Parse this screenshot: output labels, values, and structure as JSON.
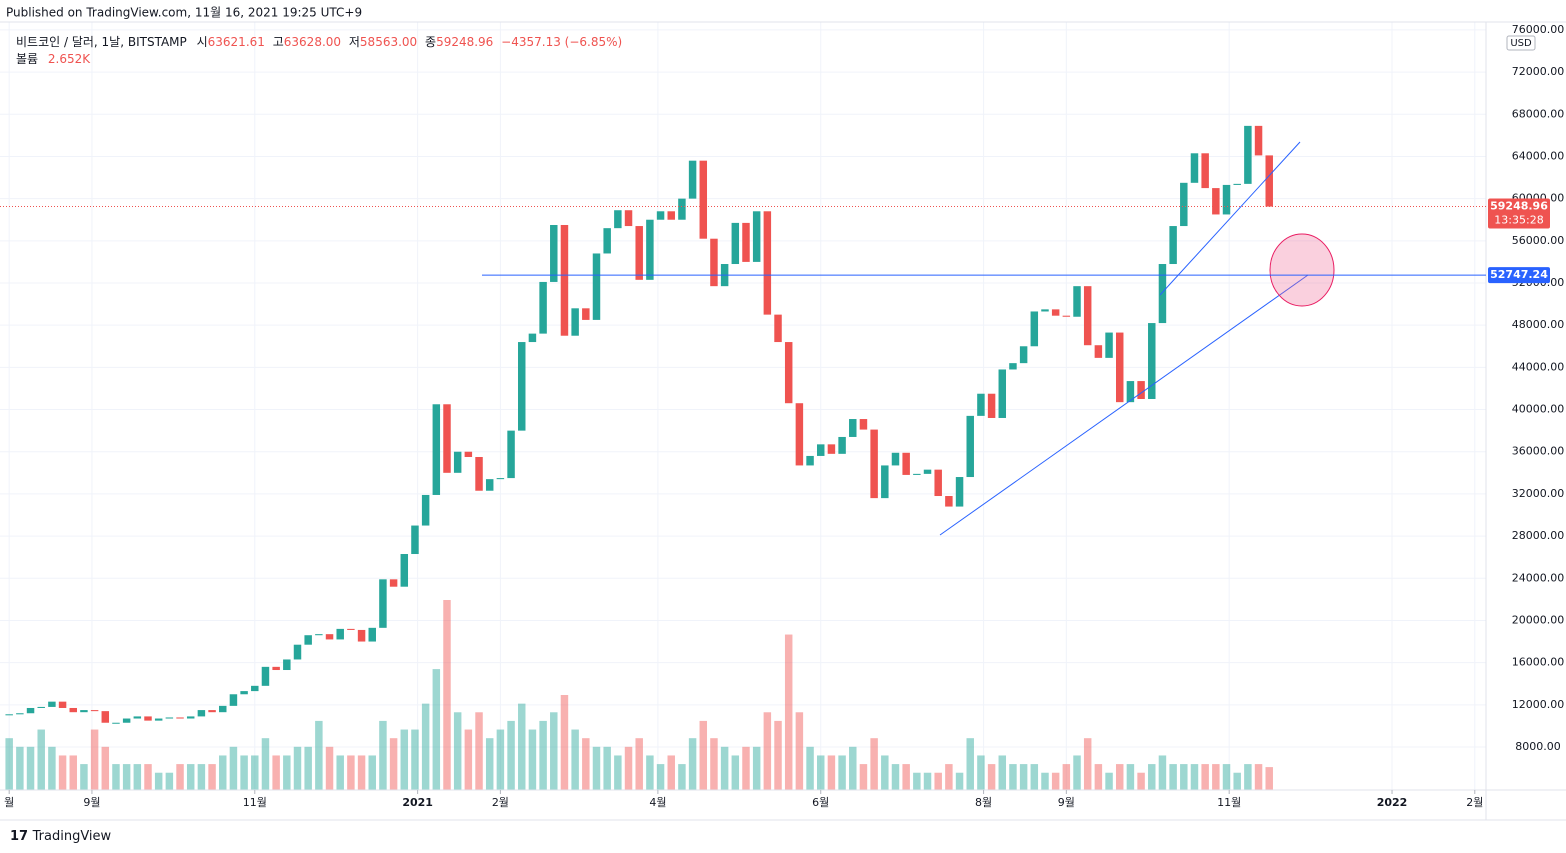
{
  "page": {
    "published": "Published on TradingView.com, 11월 16, 2021 19:25 UTC+9",
    "brand": "TradingView",
    "header": {
      "symbol": "비트코인 / 달러, 1날, BITSTAMP",
      "open_label": "시",
      "open": "63621.61",
      "high_label": "고",
      "high": "63628.00",
      "low_label": "저",
      "low": "58563.00",
      "close_label": "종",
      "close": "59248.96",
      "change": "−4357.13 (−6.85%)",
      "volume_title": "볼륨",
      "volume": "2.652K"
    },
    "currency": "USD",
    "countdown": "13:35:28"
  },
  "chart_data": {
    "type": "candlestick",
    "values": [
      11100,
      11200,
      11700,
      11800,
      12300,
      11700,
      11300,
      11500,
      11400,
      10300,
      10300,
      10700,
      10900,
      10500,
      10700,
      10800,
      10700,
      10900,
      11500,
      11300,
      11900,
      13000,
      13300,
      13800,
      15600,
      15300,
      16300,
      17700,
      18600,
      18700,
      18200,
      19200,
      19100,
      18000,
      19300,
      23900,
      23200,
      26300,
      29000,
      31900,
      40500,
      34000,
      36000,
      35500,
      32300,
      33400,
      33500,
      38000,
      46400,
      47200,
      52100,
      57500,
      47000,
      49600,
      48500,
      54800,
      57200,
      58900,
      57400,
      52300,
      58000,
      58800,
      58000,
      60000,
      63600,
      56200,
      51700,
      53800,
      57700,
      54000,
      58800,
      49000,
      46400,
      40600,
      34700,
      35600,
      36700,
      35800,
      37400,
      39100,
      38100,
      31600,
      34700,
      35900,
      33800,
      33900,
      34300,
      31800,
      30800,
      33600,
      39400,
      41500,
      39200,
      43800,
      44400,
      46000,
      49300,
      49500,
      48900,
      48800,
      51700,
      46100,
      44900,
      47300,
      40700,
      42700,
      41000,
      48200,
      53800,
      57400,
      61500,
      64300,
      61000,
      58500,
      61300,
      61400,
      66900,
      64100,
      59248.96
    ],
    "volume": [
      6,
      5,
      5,
      7,
      5,
      4,
      4,
      3,
      7,
      5,
      3,
      3,
      3,
      3,
      2,
      2,
      3,
      3,
      3,
      3,
      4,
      5,
      4,
      4,
      6,
      4,
      4,
      5,
      5,
      8,
      5,
      4,
      4,
      4,
      4,
      8,
      6,
      7,
      7,
      10,
      14,
      22,
      9,
      7,
      9,
      6,
      7,
      8,
      10,
      7,
      8,
      9,
      11,
      7,
      6,
      5,
      5,
      4,
      5,
      6,
      4,
      3,
      4,
      3,
      6,
      8,
      6,
      5,
      4,
      5,
      5,
      9,
      8,
      18,
      9,
      5,
      4,
      4,
      4,
      5,
      3,
      6,
      4,
      3,
      3,
      2,
      2,
      2,
      3,
      2,
      6,
      4,
      3,
      4,
      3,
      3,
      3,
      2,
      2,
      3,
      4,
      6,
      3,
      2,
      3,
      3,
      2,
      3,
      4,
      3,
      3,
      3,
      3,
      3,
      3,
      2,
      3,
      3,
      2.652
    ],
    "up_color": "#26a69a",
    "down_color": "#ef5350",
    "xlim": [
      -0.86,
      138.3
    ],
    "xticks": [
      {
        "value": 0,
        "label": "월"
      },
      {
        "value": 7.75,
        "label": "9월"
      },
      {
        "value": 23,
        "label": "11월"
      },
      {
        "value": 38.25,
        "label": "2021"
      },
      {
        "value": 46,
        "label": "2월"
      },
      {
        "value": 60.75,
        "label": "4월"
      },
      {
        "value": 76,
        "label": "6월"
      },
      {
        "value": 91.25,
        "label": "8월"
      },
      {
        "value": 99,
        "label": "9월"
      },
      {
        "value": 114.25,
        "label": "11월"
      },
      {
        "value": 129.5,
        "label": "2022"
      },
      {
        "value": 137.25,
        "label": "2월"
      }
    ],
    "ylim": [
      3922,
      76750
    ],
    "yticks": [
      {
        "value": 8000,
        "label": "8000.00"
      },
      {
        "value": 12000,
        "label": "12000.00"
      },
      {
        "value": 16000,
        "label": "16000.00"
      },
      {
        "value": 20000,
        "label": "20000.00"
      },
      {
        "value": 24000,
        "label": "24000.00"
      },
      {
        "value": 28000,
        "label": "28000.00"
      },
      {
        "value": 32000,
        "label": "32000.00"
      },
      {
        "value": 36000,
        "label": "36000.00"
      },
      {
        "value": 40000,
        "label": "40000.00"
      },
      {
        "value": 44000,
        "label": "44000.00"
      },
      {
        "value": 48000,
        "label": "48000.00"
      },
      {
        "value": 52000,
        "label": "52000.00"
      },
      {
        "value": 56000,
        "label": "56000.00"
      },
      {
        "value": 60000,
        "label": "60000.00"
      },
      {
        "value": 64000,
        "label": "64000.00"
      },
      {
        "value": 68000,
        "label": "68000.00"
      },
      {
        "value": 72000,
        "label": "72000.00"
      },
      {
        "value": 76000,
        "label": "76000.00"
      }
    ],
    "grid": true,
    "level": {
      "value": 52747.24,
      "label": "52747.24",
      "color": "#2962ff"
    },
    "last": {
      "value": 59248.96,
      "label": "59248.96"
    }
  }
}
